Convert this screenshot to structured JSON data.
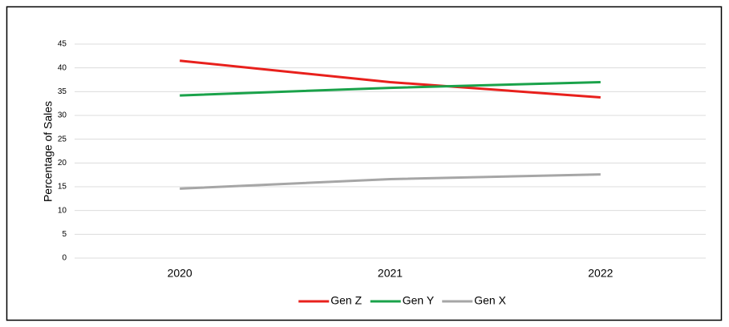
{
  "chart_data": {
    "type": "line",
    "y_label": "Percentage of Sales",
    "categories": [
      "2020",
      "2021",
      "2022"
    ],
    "series": [
      {
        "name": "Gen Z",
        "color": "#e8201c",
        "values": [
          41.5,
          37,
          33.8
        ]
      },
      {
        "name": "Gen Y",
        "color": "#1aa24a",
        "values": [
          34.2,
          35.8,
          37
        ]
      },
      {
        "name": "Gen X",
        "color": "#a6a6a6",
        "values": [
          14.6,
          16.6,
          17.6
        ]
      }
    ],
    "ylim": [
      0,
      45
    ],
    "yticks": [
      0,
      5,
      10,
      15,
      20,
      25,
      30,
      35,
      40,
      45
    ],
    "grid": true,
    "legend": "bottom"
  }
}
